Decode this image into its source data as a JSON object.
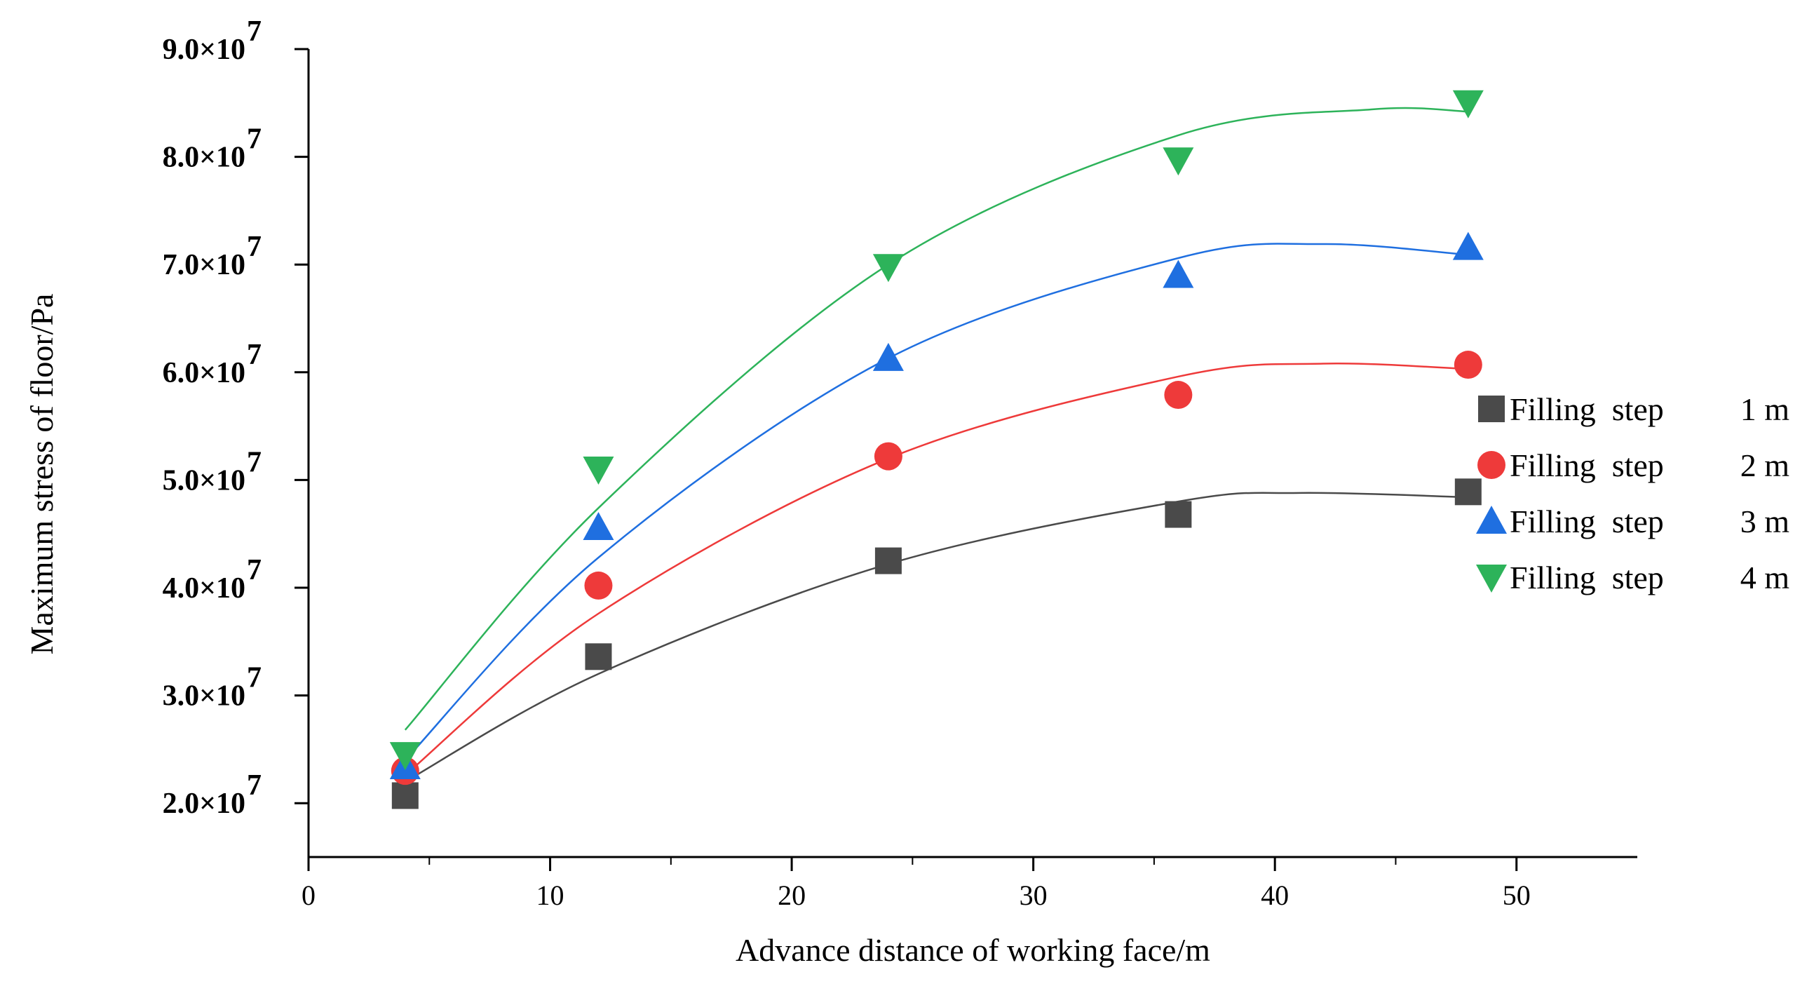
{
  "chart_data": {
    "type": "scatter",
    "title": "",
    "xlabel": "Advance distance of working face/m",
    "ylabel": "Maximum stress of floor/Pa",
    "xlim": [
      0,
      55
    ],
    "ylim": [
      15000000,
      90000000
    ],
    "x_ticks": [
      0,
      10,
      20,
      30,
      40,
      50
    ],
    "x_tick_labels": [
      "0",
      "10",
      "20",
      "30",
      "40",
      "50"
    ],
    "y_ticks": [
      20000000,
      30000000,
      40000000,
      50000000,
      60000000,
      70000000,
      80000000,
      90000000
    ],
    "y_tick_labels": [
      {
        "mantissa": "2.0×10",
        "exp": "7"
      },
      {
        "mantissa": "3.0×10",
        "exp": "7"
      },
      {
        "mantissa": "4.0×10",
        "exp": "7"
      },
      {
        "mantissa": "5.0×10",
        "exp": "7"
      },
      {
        "mantissa": "6.0×10",
        "exp": "7"
      },
      {
        "mantissa": "7.0×10",
        "exp": "7"
      },
      {
        "mantissa": "8.0×10",
        "exp": "7"
      },
      {
        "mantissa": "9.0×10",
        "exp": "7"
      }
    ],
    "legend_position": "right",
    "series": [
      {
        "name": "Filling step 1 m",
        "label_left": "Filling  step",
        "label_right": "1 m",
        "marker": "square",
        "color": "#4a4a4a",
        "x": [
          4,
          12,
          24,
          36,
          48
        ],
        "y": [
          20700000,
          33600000,
          42500000,
          46800000,
          48900000
        ],
        "fit_x": [
          4,
          12,
          24,
          36,
          41,
          48
        ],
        "fit_y": [
          22000000,
          32000000,
          42200000,
          48000000,
          48800000,
          48400000
        ]
      },
      {
        "name": "Filling step 2 m",
        "label_left": "Filling  step",
        "label_right": "2 m",
        "marker": "circle",
        "color": "#ee3a3a",
        "x": [
          4,
          12,
          24,
          36,
          48
        ],
        "y": [
          23000000,
          40200000,
          52200000,
          57900000,
          60700000
        ],
        "fit_x": [
          4,
          12,
          24,
          36,
          42,
          48
        ],
        "fit_y": [
          22600000,
          37600000,
          52000000,
          59600000,
          60800000,
          60300000
        ]
      },
      {
        "name": "Filling step 3 m",
        "label_left": "Filling  step",
        "label_right": "3 m",
        "marker": "triangle-up",
        "color": "#1f6fe0",
        "x": [
          4,
          12,
          24,
          36,
          48
        ],
        "y": [
          23400000,
          45600000,
          61300000,
          69000000,
          71600000
        ],
        "fit_x": [
          4,
          12,
          24,
          36,
          42,
          48
        ],
        "fit_y": [
          24000000,
          42800000,
          61300000,
          70600000,
          71900000,
          70900000
        ]
      },
      {
        "name": "Filling step 4 m",
        "label_left": "Filling  step",
        "label_right": "4 m",
        "marker": "triangle-down",
        "color": "#2db35a",
        "x": [
          4,
          12,
          24,
          36,
          48
        ],
        "y": [
          24500000,
          51000000,
          69800000,
          79700000,
          85000000
        ],
        "fit_x": [
          4,
          12,
          24,
          36,
          44,
          48
        ],
        "fit_y": [
          26800000,
          47400000,
          70000000,
          82000000,
          84400000,
          84200000
        ]
      }
    ]
  }
}
